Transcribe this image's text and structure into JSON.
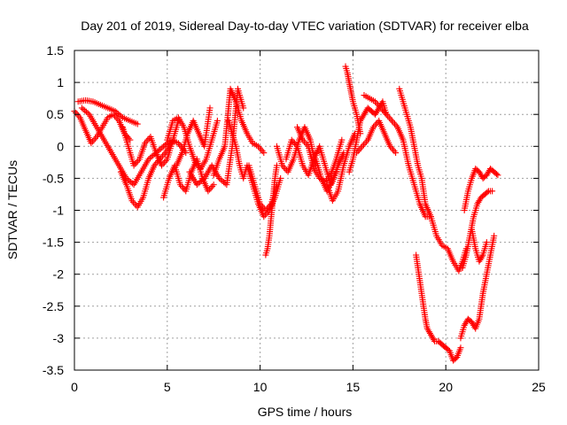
{
  "chart_data": {
    "type": "scatter",
    "title": "Day 201 of 2019, Sidereal Day-to-day VTEC variation (SDTVAR) for receiver elba",
    "xlabel": "GPS time / hours",
    "ylabel": "SDTVAR / TECUs",
    "xlim": [
      0,
      25
    ],
    "ylim": [
      -3.5,
      1.5
    ],
    "xticks": [
      0,
      5,
      10,
      15,
      20,
      25
    ],
    "yticks": [
      -3.5,
      -3,
      -2.5,
      -2,
      -1.5,
      -1,
      -0.5,
      0,
      0.5,
      1,
      1.5
    ],
    "xtick_labels": [
      "0",
      "5",
      "10",
      "15",
      "20",
      "25"
    ],
    "ytick_labels": [
      "-3.5",
      "-3",
      "-2.5",
      "-2",
      "-1.5",
      "-1",
      "-0.5",
      "0",
      "0.5",
      "1",
      "1.5"
    ],
    "grid": true,
    "marker": "plus",
    "color": "#ff0000",
    "series": [
      {
        "x": [
          0.0,
          0.3,
          0.6,
          0.9,
          1.2,
          1.5,
          1.8,
          2.1,
          2.4,
          2.7,
          3.0
        ],
        "y": [
          0.55,
          0.45,
          0.25,
          0.05,
          0.15,
          0.3,
          0.45,
          0.5,
          0.4,
          0.2,
          0.1
        ]
      },
      {
        "x": [
          0.2,
          0.6,
          1.0,
          1.4,
          1.8,
          2.2,
          2.6,
          3.0,
          3.4
        ],
        "y": [
          0.7,
          0.72,
          0.7,
          0.65,
          0.6,
          0.55,
          0.45,
          0.4,
          0.35
        ]
      },
      {
        "x": [
          0.4,
          0.8,
          1.2,
          1.6,
          2.0,
          2.4,
          2.8,
          3.2,
          3.6,
          4.0,
          4.4,
          4.8,
          5.2,
          5.6,
          6.0
        ],
        "y": [
          0.6,
          0.5,
          0.3,
          0.1,
          -0.1,
          -0.3,
          -0.5,
          -0.6,
          -0.4,
          -0.2,
          -0.1,
          0.0,
          0.1,
          0.05,
          -0.1
        ]
      },
      {
        "x": [
          2.5,
          2.8,
          3.1,
          3.4,
          3.7,
          4.0,
          4.3,
          4.6,
          4.9,
          5.2
        ],
        "y": [
          -0.4,
          -0.6,
          -0.85,
          -0.95,
          -0.8,
          -0.5,
          -0.3,
          -0.2,
          -0.1,
          0.05
        ]
      },
      {
        "x": [
          2.6,
          2.9,
          3.2,
          3.5,
          3.8,
          4.1,
          4.4,
          4.7,
          5.0,
          5.3,
          5.6
        ],
        "y": [
          0.3,
          0.0,
          -0.3,
          -0.2,
          0.05,
          0.15,
          -0.1,
          -0.3,
          -0.2,
          0.1,
          0.4
        ]
      },
      {
        "x": [
          4.8,
          5.1,
          5.4,
          5.7,
          6.0,
          6.3,
          6.6,
          6.9,
          7.2,
          7.5
        ],
        "y": [
          -0.8,
          -0.5,
          -0.3,
          -0.6,
          -0.7,
          -0.4,
          -0.2,
          -0.5,
          -0.7,
          -0.6
        ]
      },
      {
        "x": [
          5.0,
          5.3,
          5.6,
          5.9,
          6.2,
          6.5,
          6.8,
          7.1,
          7.4,
          7.7
        ],
        "y": [
          0.1,
          0.4,
          0.45,
          0.3,
          0.0,
          -0.25,
          -0.35,
          -0.2,
          0.1,
          0.4
        ]
      },
      {
        "x": [
          5.5,
          5.8,
          6.1,
          6.4,
          6.7,
          7.0,
          7.3
        ],
        "y": [
          -0.3,
          -0.1,
          0.2,
          0.4,
          0.2,
          0.0,
          0.6
        ]
      },
      {
        "x": [
          6.2,
          6.6,
          7.0,
          7.4,
          7.8,
          8.2,
          8.5,
          8.8,
          9.1
        ],
        "y": [
          -0.4,
          -0.6,
          -0.5,
          -0.3,
          -0.5,
          -0.6,
          0.0,
          0.9,
          0.6
        ]
      },
      {
        "x": [
          7.5,
          7.8,
          8.1,
          8.4,
          8.7,
          9.0,
          9.3,
          9.6,
          9.9,
          10.2
        ],
        "y": [
          -0.45,
          -0.2,
          0.0,
          0.9,
          0.7,
          0.4,
          0.2,
          0.05,
          0.0,
          -0.1
        ]
      },
      {
        "x": [
          8.3,
          8.5,
          8.7,
          8.9,
          9.1,
          9.3,
          9.6,
          9.9,
          10.2,
          10.5,
          10.8,
          11.1
        ],
        "y": [
          0.4,
          0.2,
          0.0,
          -0.3,
          -0.5,
          -0.3,
          -0.6,
          -0.9,
          -1.1,
          -1.0,
          -0.8,
          -0.5
        ]
      },
      {
        "x": [
          9.4,
          9.7,
          10.0,
          10.3,
          10.6,
          10.9
        ],
        "y": [
          -0.3,
          -0.6,
          -0.9,
          -1.0,
          -0.9,
          -0.6
        ]
      },
      {
        "x": [
          10.3,
          10.4,
          10.5,
          10.6,
          10.7,
          10.8,
          10.9
        ],
        "y": [
          -1.7,
          -1.6,
          -1.4,
          -1.1,
          -0.8,
          -0.5,
          -0.3
        ]
      },
      {
        "x": [
          10.9,
          11.2,
          11.5,
          11.8,
          12.1,
          12.4,
          12.7,
          13.0
        ],
        "y": [
          0.0,
          -0.3,
          -0.4,
          -0.2,
          0.1,
          0.3,
          0.1,
          -0.3
        ]
      },
      {
        "x": [
          11.4,
          11.7,
          12.0,
          12.3,
          12.6,
          12.9,
          13.2,
          13.5,
          13.8,
          14.1
        ],
        "y": [
          -0.2,
          0.1,
          0.0,
          -0.3,
          -0.45,
          -0.2,
          0.0,
          -0.3,
          -0.6,
          -0.4
        ]
      },
      {
        "x": [
          12.0,
          12.3,
          12.6,
          12.9,
          13.2,
          13.5,
          13.8,
          14.1,
          14.4
        ],
        "y": [
          0.3,
          0.1,
          0.0,
          -0.35,
          -0.5,
          -0.55,
          -0.45,
          -0.2,
          0.1
        ]
      },
      {
        "x": [
          13.0,
          13.3,
          13.6,
          13.9,
          14.2,
          14.5
        ],
        "y": [
          -0.2,
          -0.5,
          -0.7,
          -0.55,
          -0.3,
          -0.1
        ]
      },
      {
        "x": [
          13.6,
          13.9,
          14.2,
          14.5,
          14.8,
          15.1
        ],
        "y": [
          -0.6,
          -0.85,
          -0.7,
          -0.3,
          0.0,
          0.2
        ]
      },
      {
        "x": [
          14.6,
          14.7,
          14.8,
          14.9,
          15.0,
          15.2,
          15.4
        ],
        "y": [
          1.25,
          1.15,
          1.0,
          0.85,
          0.7,
          0.5,
          0.2
        ]
      },
      {
        "x": [
          14.8,
          15.0,
          15.2,
          15.4,
          15.6,
          15.8,
          16.0,
          16.2,
          16.4,
          16.6,
          16.8
        ],
        "y": [
          -0.4,
          -0.2,
          0.1,
          0.4,
          0.5,
          0.6,
          0.55,
          0.5,
          0.6,
          0.7,
          0.5
        ]
      },
      {
        "x": [
          15.2,
          15.5,
          15.8,
          16.1,
          16.4,
          16.7,
          17.0,
          17.3
        ],
        "y": [
          -0.1,
          0.0,
          0.1,
          0.3,
          0.4,
          0.2,
          0.0,
          -0.1
        ]
      },
      {
        "x": [
          15.6,
          15.9,
          16.2,
          16.5,
          16.8,
          17.1,
          17.4,
          17.7,
          18.0,
          18.3,
          18.6,
          18.9,
          19.2
        ],
        "y": [
          0.8,
          0.75,
          0.7,
          0.6,
          0.5,
          0.4,
          0.3,
          0.1,
          -0.3,
          -0.6,
          -0.9,
          -1.1,
          -1.1
        ]
      },
      {
        "x": [
          17.5,
          17.7,
          17.9,
          18.1,
          18.3,
          18.5,
          18.7,
          18.9,
          19.2,
          19.5,
          19.8,
          20.1,
          20.4,
          20.7,
          20.9,
          21.1
        ],
        "y": [
          0.9,
          0.7,
          0.5,
          0.3,
          0.0,
          -0.3,
          -0.5,
          -0.9,
          -1.1,
          -1.4,
          -1.55,
          -1.6,
          -1.8,
          -1.95,
          -1.8,
          -1.6
        ]
      },
      {
        "x": [
          18.4,
          18.5,
          18.6,
          18.7,
          18.8,
          18.9,
          19.0,
          19.2,
          19.4,
          19.6,
          19.8,
          20.0,
          20.2,
          20.4,
          20.6,
          20.8
        ],
        "y": [
          -1.7,
          -1.9,
          -2.1,
          -2.3,
          -2.5,
          -2.7,
          -2.85,
          -2.95,
          -3.05,
          -3.05,
          -3.1,
          -3.15,
          -3.2,
          -3.35,
          -3.3,
          -3.15
        ]
      },
      {
        "x": [
          20.8,
          21.0,
          21.2,
          21.4,
          21.6,
          21.8,
          22.0,
          22.2,
          22.4,
          22.6
        ],
        "y": [
          -3.0,
          -2.8,
          -2.7,
          -2.75,
          -2.85,
          -2.7,
          -2.3,
          -2.0,
          -1.7,
          -1.4
        ]
      },
      {
        "x": [
          20.9,
          21.1,
          21.3,
          21.5,
          21.7,
          21.9,
          22.1,
          22.3,
          22.5
        ],
        "y": [
          -1.9,
          -1.7,
          -1.4,
          -1.1,
          -0.9,
          -0.8,
          -0.75,
          -0.7,
          -0.7
        ]
      },
      {
        "x": [
          21.0,
          21.2,
          21.4,
          21.6,
          21.8,
          22.0,
          22.2,
          22.4,
          22.6,
          22.8
        ],
        "y": [
          -1.0,
          -0.7,
          -0.5,
          -0.35,
          -0.4,
          -0.5,
          -0.45,
          -0.35,
          -0.4,
          -0.45
        ]
      },
      {
        "x": [
          21.4,
          21.6,
          21.8,
          22.0,
          22.2
        ],
        "y": [
          -1.3,
          -1.6,
          -1.8,
          -1.7,
          -1.5
        ]
      }
    ]
  }
}
